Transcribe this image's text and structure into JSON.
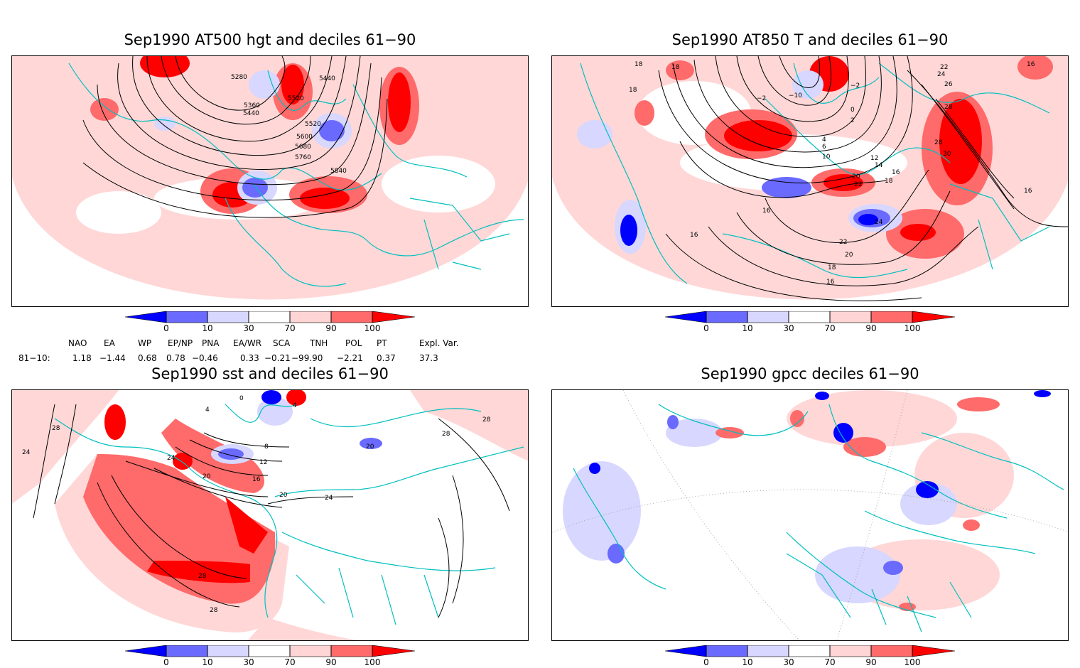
{
  "panels": [
    {
      "title": "Sep1990 AT500 hgt and deciles 61−90",
      "contour_labels": [
        "5280",
        "5440",
        "5360",
        "5520",
        "5440",
        "5520",
        "5600",
        "5680",
        "5760",
        "5840"
      ]
    },
    {
      "title": "Sep1990 AT850 T and deciles 61−90",
      "contour_labels": [
        "18",
        "18",
        "18",
        "−2",
        "−10",
        "−2",
        "0",
        "2",
        "4",
        "6",
        "10",
        "12",
        "14",
        "16",
        "18",
        "20",
        "22",
        "16",
        "16",
        "24",
        "22",
        "20",
        "18",
        "16",
        "16",
        "26",
        "28",
        "28",
        "30",
        "16",
        "24",
        "22"
      ]
    },
    {
      "title": "Sep1990 sst and deciles 61−90",
      "contour_labels": [
        "24",
        "28",
        "4",
        "0",
        "4",
        "8",
        "12",
        "16",
        "20",
        "24",
        "28",
        "28",
        "20",
        "24",
        "20",
        "28",
        "28"
      ]
    },
    {
      "title": "Sep1990 gpcc deciles 61−90",
      "contour_labels": []
    }
  ],
  "colorbar": {
    "labels": [
      "0",
      "10",
      "30",
      "70",
      "90",
      "100"
    ],
    "colors": [
      "#0000ff",
      "#6a6aff",
      "#d7d7ff",
      "#ffffff",
      "#ffd4d4",
      "#ff6a6a",
      "#ff0000"
    ]
  },
  "indices": {
    "headers": [
      "NAO",
      "EA",
      "WP",
      "EP/NP",
      "PNA",
      "EA/WR",
      "SCA",
      "TNH",
      "POL",
      "PT",
      "Expl. Var."
    ],
    "row_label": "81−10:",
    "values": [
      "1.18",
      "−1.44",
      "0.68",
      "0.78",
      "−0.46",
      "0.33",
      "−0.21",
      "−99.90",
      "−2.21",
      "0.37",
      "37.3"
    ]
  }
}
